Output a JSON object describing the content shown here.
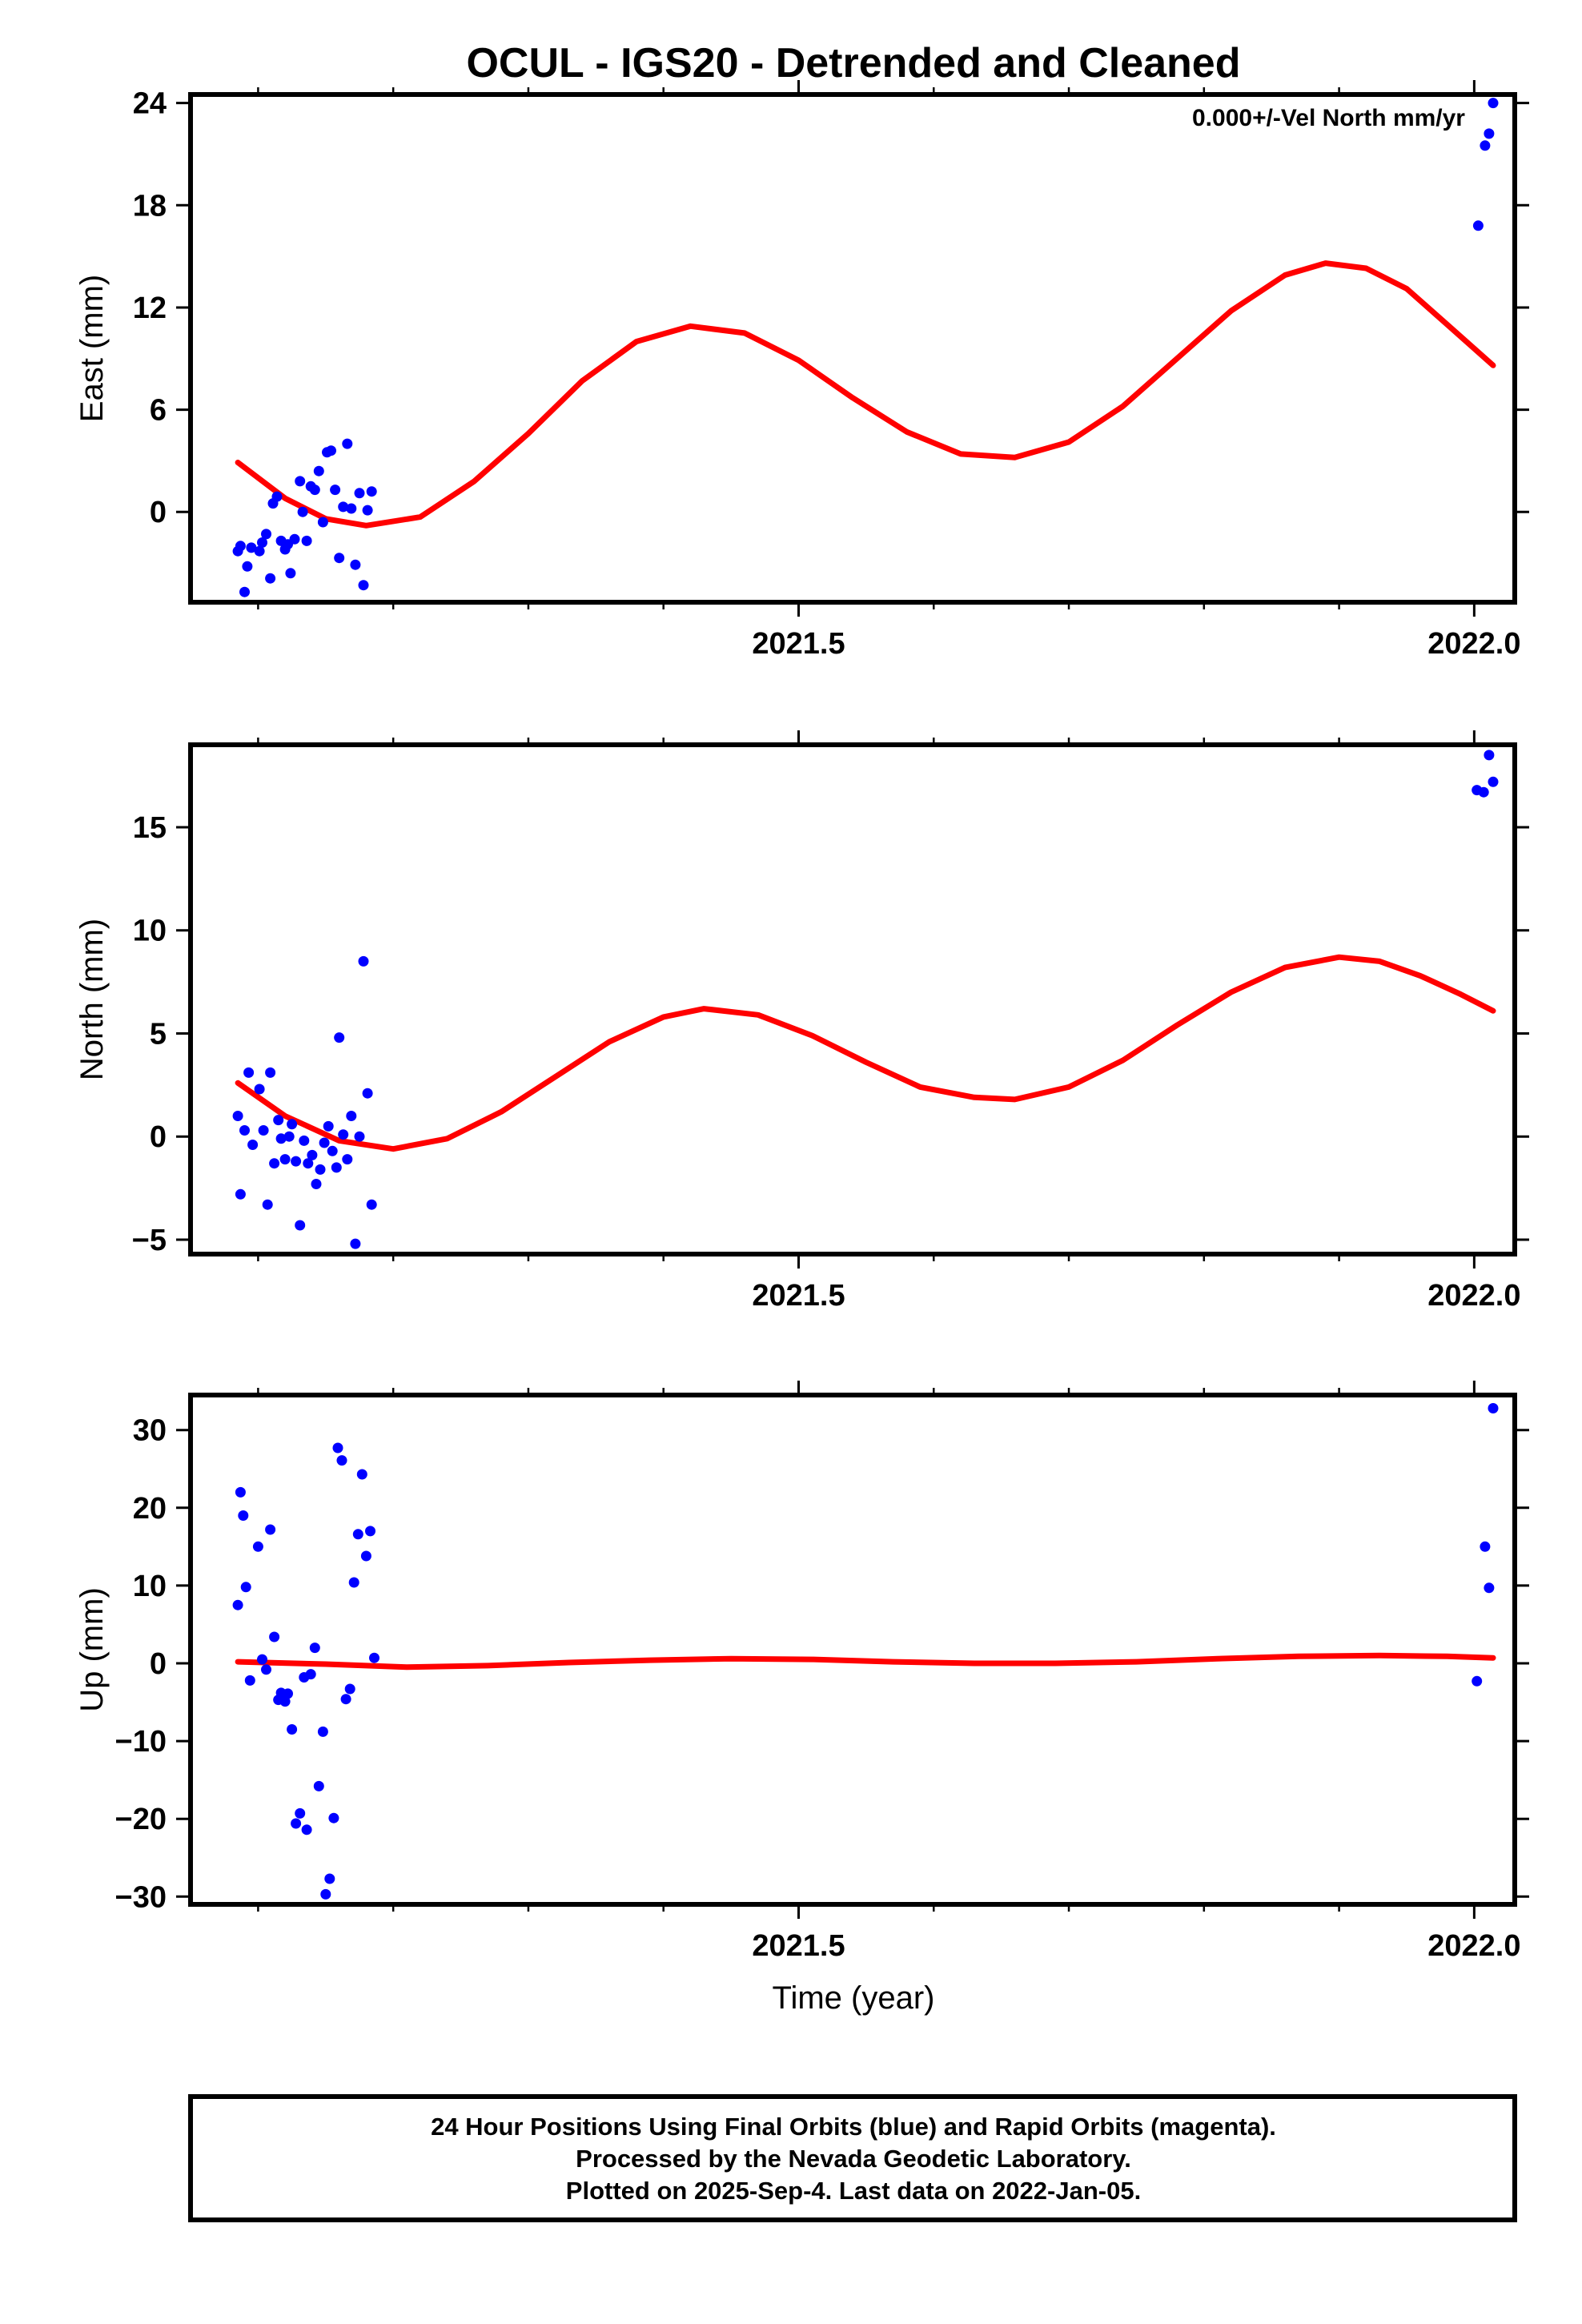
{
  "title": "OCUL - IGS20 - Detrended and Cleaned",
  "annotation": "0.000+/-Vel North mm/yr",
  "xlabel": "Time (year)",
  "footer": {
    "line1": "24 Hour Positions Using Final Orbits (blue) and Rapid Orbits (magenta).",
    "line2": "Processed by the Nevada Geodetic Laboratory.",
    "line3": "Plotted on 2025-Sep-4. Last data on 2022-Jan-05."
  },
  "colors": {
    "points": "#0000ff",
    "fit": "#ff0000",
    "frame": "#000000"
  },
  "chart_data": [
    {
      "type": "scatter",
      "ylabel": "East (mm)",
      "xlim": [
        2021.05,
        2022.03
      ],
      "ylim": [
        -5.3,
        24.5
      ],
      "xticks": [
        2021.5,
        2022.0
      ],
      "xticklabels": [
        "2021.5",
        "2022.0"
      ],
      "yticks": [
        0,
        6,
        12,
        18,
        24
      ],
      "yticklabels": [
        "0",
        "6",
        "12",
        "18",
        "24"
      ],
      "points": [
        [
          2021.085,
          -2.3
        ],
        [
          2021.087,
          -2.0
        ],
        [
          2021.09,
          -4.7
        ],
        [
          2021.092,
          -3.2
        ],
        [
          2021.095,
          -2.1
        ],
        [
          2021.101,
          -2.3
        ],
        [
          2021.103,
          -1.8
        ],
        [
          2021.106,
          -1.3
        ],
        [
          2021.109,
          -3.9
        ],
        [
          2021.111,
          0.5
        ],
        [
          2021.114,
          0.9
        ],
        [
          2021.117,
          -1.7
        ],
        [
          2021.12,
          -2.2
        ],
        [
          2021.122,
          -1.9
        ],
        [
          2021.124,
          -3.6
        ],
        [
          2021.127,
          -1.6
        ],
        [
          2021.131,
          1.8
        ],
        [
          2021.133,
          0.0
        ],
        [
          2021.136,
          -1.7
        ],
        [
          2021.139,
          1.5
        ],
        [
          2021.142,
          1.3
        ],
        [
          2021.145,
          2.4
        ],
        [
          2021.148,
          -0.6
        ],
        [
          2021.151,
          3.5
        ],
        [
          2021.154,
          3.6
        ],
        [
          2021.157,
          1.3
        ],
        [
          2021.16,
          -2.7
        ],
        [
          2021.163,
          0.3
        ],
        [
          2021.166,
          4.0
        ],
        [
          2021.169,
          0.2
        ],
        [
          2021.172,
          -3.1
        ],
        [
          2021.175,
          1.1
        ],
        [
          2021.178,
          -4.3
        ],
        [
          2021.181,
          0.1
        ],
        [
          2021.184,
          1.2
        ],
        [
          2022.003,
          16.8
        ],
        [
          2022.008,
          21.5
        ],
        [
          2022.011,
          22.2
        ],
        [
          2022.014,
          24.0
        ]
      ],
      "fit": [
        [
          2021.085,
          2.9
        ],
        [
          2021.12,
          0.8
        ],
        [
          2021.15,
          -0.4
        ],
        [
          2021.18,
          -0.8
        ],
        [
          2021.22,
          -0.3
        ],
        [
          2021.26,
          1.8
        ],
        [
          2021.3,
          4.6
        ],
        [
          2021.34,
          7.7
        ],
        [
          2021.38,
          10.0
        ],
        [
          2021.42,
          10.9
        ],
        [
          2021.46,
          10.5
        ],
        [
          2021.5,
          8.9
        ],
        [
          2021.54,
          6.7
        ],
        [
          2021.58,
          4.7
        ],
        [
          2021.62,
          3.4
        ],
        [
          2021.66,
          3.2
        ],
        [
          2021.7,
          4.1
        ],
        [
          2021.74,
          6.2
        ],
        [
          2021.78,
          9.0
        ],
        [
          2021.82,
          11.8
        ],
        [
          2021.86,
          13.9
        ],
        [
          2021.89,
          14.6
        ],
        [
          2021.92,
          14.3
        ],
        [
          2021.95,
          13.1
        ],
        [
          2021.98,
          11.0
        ],
        [
          2022.014,
          8.6
        ]
      ]
    },
    {
      "type": "scatter",
      "ylabel": "North (mm)",
      "xlim": [
        2021.05,
        2022.03
      ],
      "ylim": [
        -5.7,
        19.0
      ],
      "xticks": [
        2021.5,
        2022.0
      ],
      "xticklabels": [
        "2021.5",
        "2022.0"
      ],
      "yticks": [
        -5,
        0,
        5,
        10,
        15
      ],
      "yticklabels": [
        "−5",
        "0",
        "5",
        "10",
        "15"
      ],
      "points": [
        [
          2021.085,
          1.0
        ],
        [
          2021.087,
          -2.8
        ],
        [
          2021.09,
          0.3
        ],
        [
          2021.093,
          3.1
        ],
        [
          2021.096,
          -0.4
        ],
        [
          2021.101,
          2.3
        ],
        [
          2021.104,
          0.3
        ],
        [
          2021.107,
          -3.3
        ],
        [
          2021.109,
          3.1
        ],
        [
          2021.112,
          -1.3
        ],
        [
          2021.115,
          0.8
        ],
        [
          2021.117,
          -0.1
        ],
        [
          2021.12,
          -1.1
        ],
        [
          2021.123,
          0.0
        ],
        [
          2021.125,
          0.6
        ],
        [
          2021.128,
          -1.2
        ],
        [
          2021.131,
          -4.3
        ],
        [
          2021.134,
          -0.2
        ],
        [
          2021.137,
          -1.3
        ],
        [
          2021.14,
          -0.9
        ],
        [
          2021.143,
          -2.3
        ],
        [
          2021.146,
          -1.6
        ],
        [
          2021.149,
          -0.3
        ],
        [
          2021.152,
          0.5
        ],
        [
          2021.155,
          -0.7
        ],
        [
          2021.158,
          -1.5
        ],
        [
          2021.16,
          4.8
        ],
        [
          2021.163,
          0.1
        ],
        [
          2021.166,
          -1.1
        ],
        [
          2021.169,
          1.0
        ],
        [
          2021.172,
          -5.2
        ],
        [
          2021.175,
          0.0
        ],
        [
          2021.178,
          8.5
        ],
        [
          2021.181,
          2.1
        ],
        [
          2021.184,
          -3.3
        ],
        [
          2022.002,
          16.8
        ],
        [
          2022.007,
          16.7
        ],
        [
          2022.011,
          18.5
        ],
        [
          2022.014,
          17.2
        ]
      ],
      "fit": [
        [
          2021.085,
          2.6
        ],
        [
          2021.12,
          1.0
        ],
        [
          2021.16,
          -0.2
        ],
        [
          2021.2,
          -0.6
        ],
        [
          2021.24,
          -0.1
        ],
        [
          2021.28,
          1.2
        ],
        [
          2021.32,
          2.9
        ],
        [
          2021.36,
          4.6
        ],
        [
          2021.4,
          5.8
        ],
        [
          2021.43,
          6.2
        ],
        [
          2021.47,
          5.9
        ],
        [
          2021.51,
          4.9
        ],
        [
          2021.55,
          3.6
        ],
        [
          2021.59,
          2.4
        ],
        [
          2021.63,
          1.9
        ],
        [
          2021.66,
          1.8
        ],
        [
          2021.7,
          2.4
        ],
        [
          2021.74,
          3.7
        ],
        [
          2021.78,
          5.4
        ],
        [
          2021.82,
          7.0
        ],
        [
          2021.86,
          8.2
        ],
        [
          2021.9,
          8.7
        ],
        [
          2021.93,
          8.5
        ],
        [
          2021.96,
          7.8
        ],
        [
          2021.99,
          6.9
        ],
        [
          2022.014,
          6.1
        ]
      ]
    },
    {
      "type": "scatter",
      "ylabel": "Up (mm)",
      "xlabel": "Time (year)",
      "xlim": [
        2021.05,
        2022.03
      ],
      "ylim": [
        -31.0,
        34.5
      ],
      "xticks": [
        2021.5,
        2022.0
      ],
      "xticklabels": [
        "2021.5",
        "2022.0"
      ],
      "yticks": [
        -30,
        -20,
        -10,
        0,
        10,
        20,
        30
      ],
      "yticklabels": [
        "−30",
        "−20",
        "−10",
        "0",
        "10",
        "20",
        "30"
      ],
      "points": [
        [
          2021.085,
          7.5
        ],
        [
          2021.087,
          22.0
        ],
        [
          2021.089,
          19.0
        ],
        [
          2021.091,
          9.8
        ],
        [
          2021.094,
          -2.2
        ],
        [
          2021.1,
          15.0
        ],
        [
          2021.103,
          0.5
        ],
        [
          2021.106,
          -0.8
        ],
        [
          2021.109,
          17.2
        ],
        [
          2021.112,
          3.4
        ],
        [
          2021.115,
          -4.7
        ],
        [
          2021.117,
          -3.8
        ],
        [
          2021.12,
          -4.9
        ],
        [
          2021.122,
          -3.9
        ],
        [
          2021.125,
          -8.5
        ],
        [
          2021.128,
          -20.6
        ],
        [
          2021.131,
          -19.3
        ],
        [
          2021.134,
          -1.8
        ],
        [
          2021.136,
          -21.4
        ],
        [
          2021.139,
          -1.4
        ],
        [
          2021.142,
          2.0
        ],
        [
          2021.145,
          -15.8
        ],
        [
          2021.148,
          -8.8
        ],
        [
          2021.15,
          -29.7
        ],
        [
          2021.153,
          -27.7
        ],
        [
          2021.156,
          -19.9
        ],
        [
          2021.159,
          27.7
        ],
        [
          2021.162,
          26.1
        ],
        [
          2021.165,
          -4.6
        ],
        [
          2021.168,
          -3.3
        ],
        [
          2021.171,
          10.4
        ],
        [
          2021.174,
          16.6
        ],
        [
          2021.177,
          24.3
        ],
        [
          2021.18,
          13.8
        ],
        [
          2021.183,
          17.0
        ],
        [
          2021.186,
          0.7
        ],
        [
          2022.002,
          -2.3
        ],
        [
          2022.008,
          15.0
        ],
        [
          2022.011,
          9.7
        ],
        [
          2022.014,
          32.8
        ]
      ],
      "fit": [
        [
          2021.085,
          0.2
        ],
        [
          2021.15,
          -0.1
        ],
        [
          2021.21,
          -0.5
        ],
        [
          2021.27,
          -0.3
        ],
        [
          2021.33,
          0.1
        ],
        [
          2021.39,
          0.4
        ],
        [
          2021.45,
          0.6
        ],
        [
          2021.51,
          0.5
        ],
        [
          2021.57,
          0.2
        ],
        [
          2021.63,
          0.0
        ],
        [
          2021.69,
          0.0
        ],
        [
          2021.75,
          0.2
        ],
        [
          2021.81,
          0.6
        ],
        [
          2021.87,
          0.9
        ],
        [
          2021.93,
          1.0
        ],
        [
          2021.98,
          0.9
        ],
        [
          2022.014,
          0.7
        ]
      ]
    }
  ]
}
